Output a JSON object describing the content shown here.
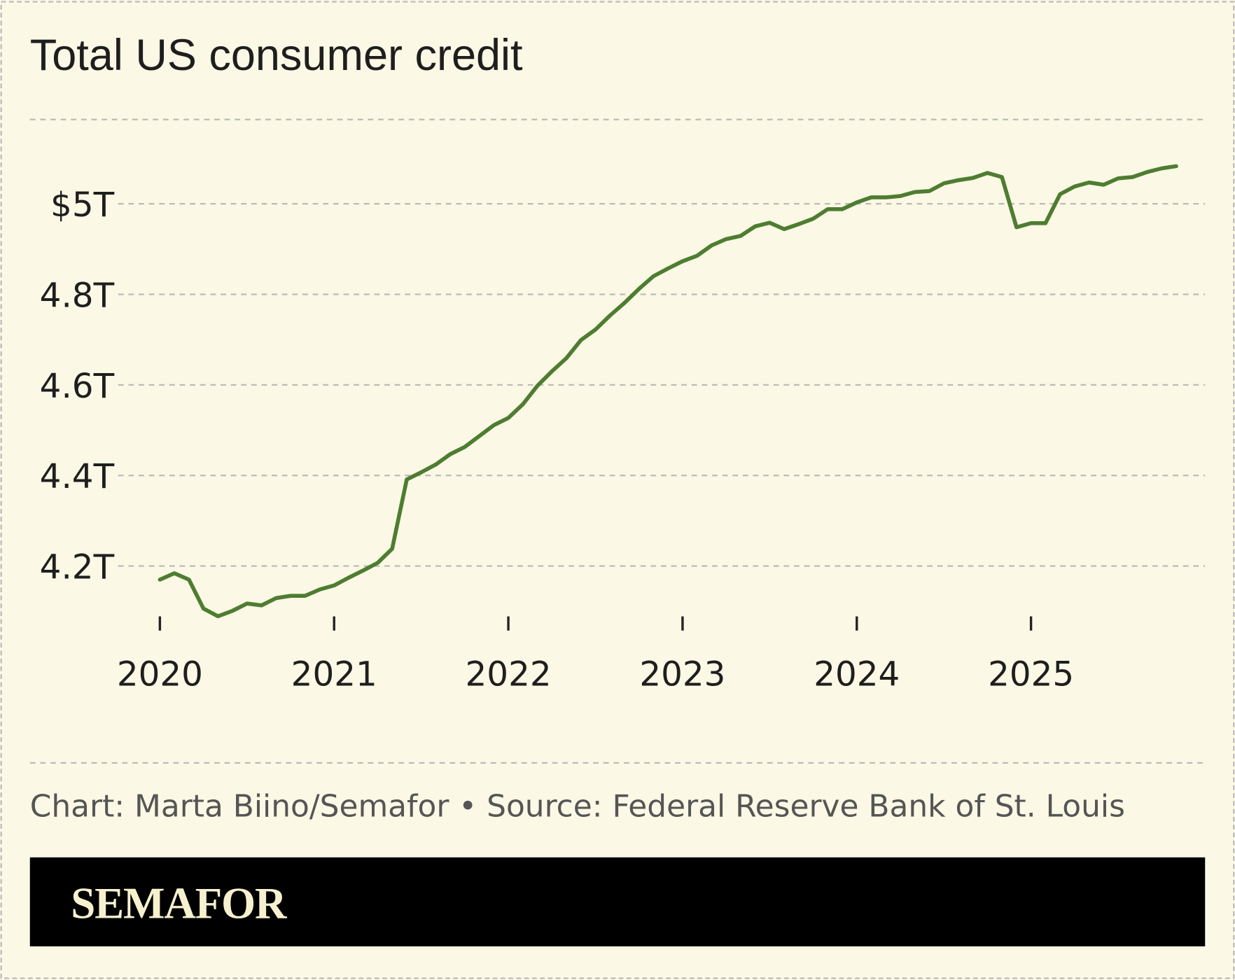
{
  "chart_data": {
    "type": "line",
    "title": "Total US consumer credit",
    "xlabel": "",
    "ylabel": "",
    "x_tick_labels": [
      "2020",
      "2021",
      "2022",
      "2023",
      "2024",
      "2025"
    ],
    "y_ticks": [
      4.2,
      4.4,
      4.6,
      4.8,
      5.0
    ],
    "y_tick_labels": [
      "4.2T",
      "4.4T",
      "4.6T",
      "4.8T",
      "$5T"
    ],
    "ylim": [
      4.07,
      5.19
    ],
    "grid": true,
    "unit": "trillion USD",
    "line_color": "#4e7d31",
    "x": [
      "2020-01",
      "2020-02",
      "2020-03",
      "2020-04",
      "2020-05",
      "2020-06",
      "2020-07",
      "2020-08",
      "2020-09",
      "2020-10",
      "2020-11",
      "2020-12",
      "2021-01",
      "2021-02",
      "2021-03",
      "2021-04",
      "2021-05",
      "2021-06",
      "2021-07",
      "2021-08",
      "2021-09",
      "2021-10",
      "2021-11",
      "2021-12",
      "2022-01",
      "2022-02",
      "2022-03",
      "2022-04",
      "2022-05",
      "2022-06",
      "2022-07",
      "2022-08",
      "2022-09",
      "2022-10",
      "2022-11",
      "2022-12",
      "2023-01",
      "2023-02",
      "2023-03",
      "2023-04",
      "2023-05",
      "2023-06",
      "2023-07",
      "2023-08",
      "2023-09",
      "2023-10",
      "2023-11",
      "2023-12",
      "2024-01",
      "2024-02",
      "2024-03",
      "2024-04",
      "2024-05",
      "2024-06",
      "2024-07",
      "2024-08",
      "2024-09",
      "2024-10",
      "2024-11",
      "2024-12",
      "2025-01",
      "2025-02",
      "2025-03",
      "2025-04",
      "2025-05",
      "2025-06",
      "2025-07",
      "2025-08",
      "2025-09",
      "2025-10",
      "2025-11"
    ],
    "values": [
      4.17,
      4.184,
      4.17,
      4.106,
      4.089,
      4.101,
      4.117,
      4.113,
      4.129,
      4.134,
      4.134,
      4.148,
      4.157,
      4.174,
      4.19,
      4.207,
      4.238,
      4.391,
      4.407,
      4.424,
      4.447,
      4.463,
      4.487,
      4.511,
      4.527,
      4.557,
      4.598,
      4.63,
      4.659,
      4.699,
      4.722,
      4.753,
      4.781,
      4.812,
      4.84,
      4.857,
      4.873,
      4.885,
      4.908,
      4.922,
      4.929,
      4.95,
      4.958,
      4.944,
      4.955,
      4.967,
      4.988,
      4.988,
      5.003,
      5.014,
      5.014,
      5.017,
      5.026,
      5.028,
      5.045,
      5.052,
      5.057,
      5.068,
      5.059,
      4.948,
      4.957,
      4.957,
      5.021,
      5.038,
      5.047,
      5.042,
      5.056,
      5.059,
      5.07,
      5.078,
      5.083
    ]
  },
  "footer": {
    "credit": "Chart: Marta Biino/Semafor • Source: Federal Reserve Bank of St. Louis",
    "logo": "SEMAFOR"
  },
  "colors": {
    "background": "#fbf8e5",
    "line": "#4e7d31",
    "banner": "#000000",
    "logo": "#f7f0cf"
  }
}
